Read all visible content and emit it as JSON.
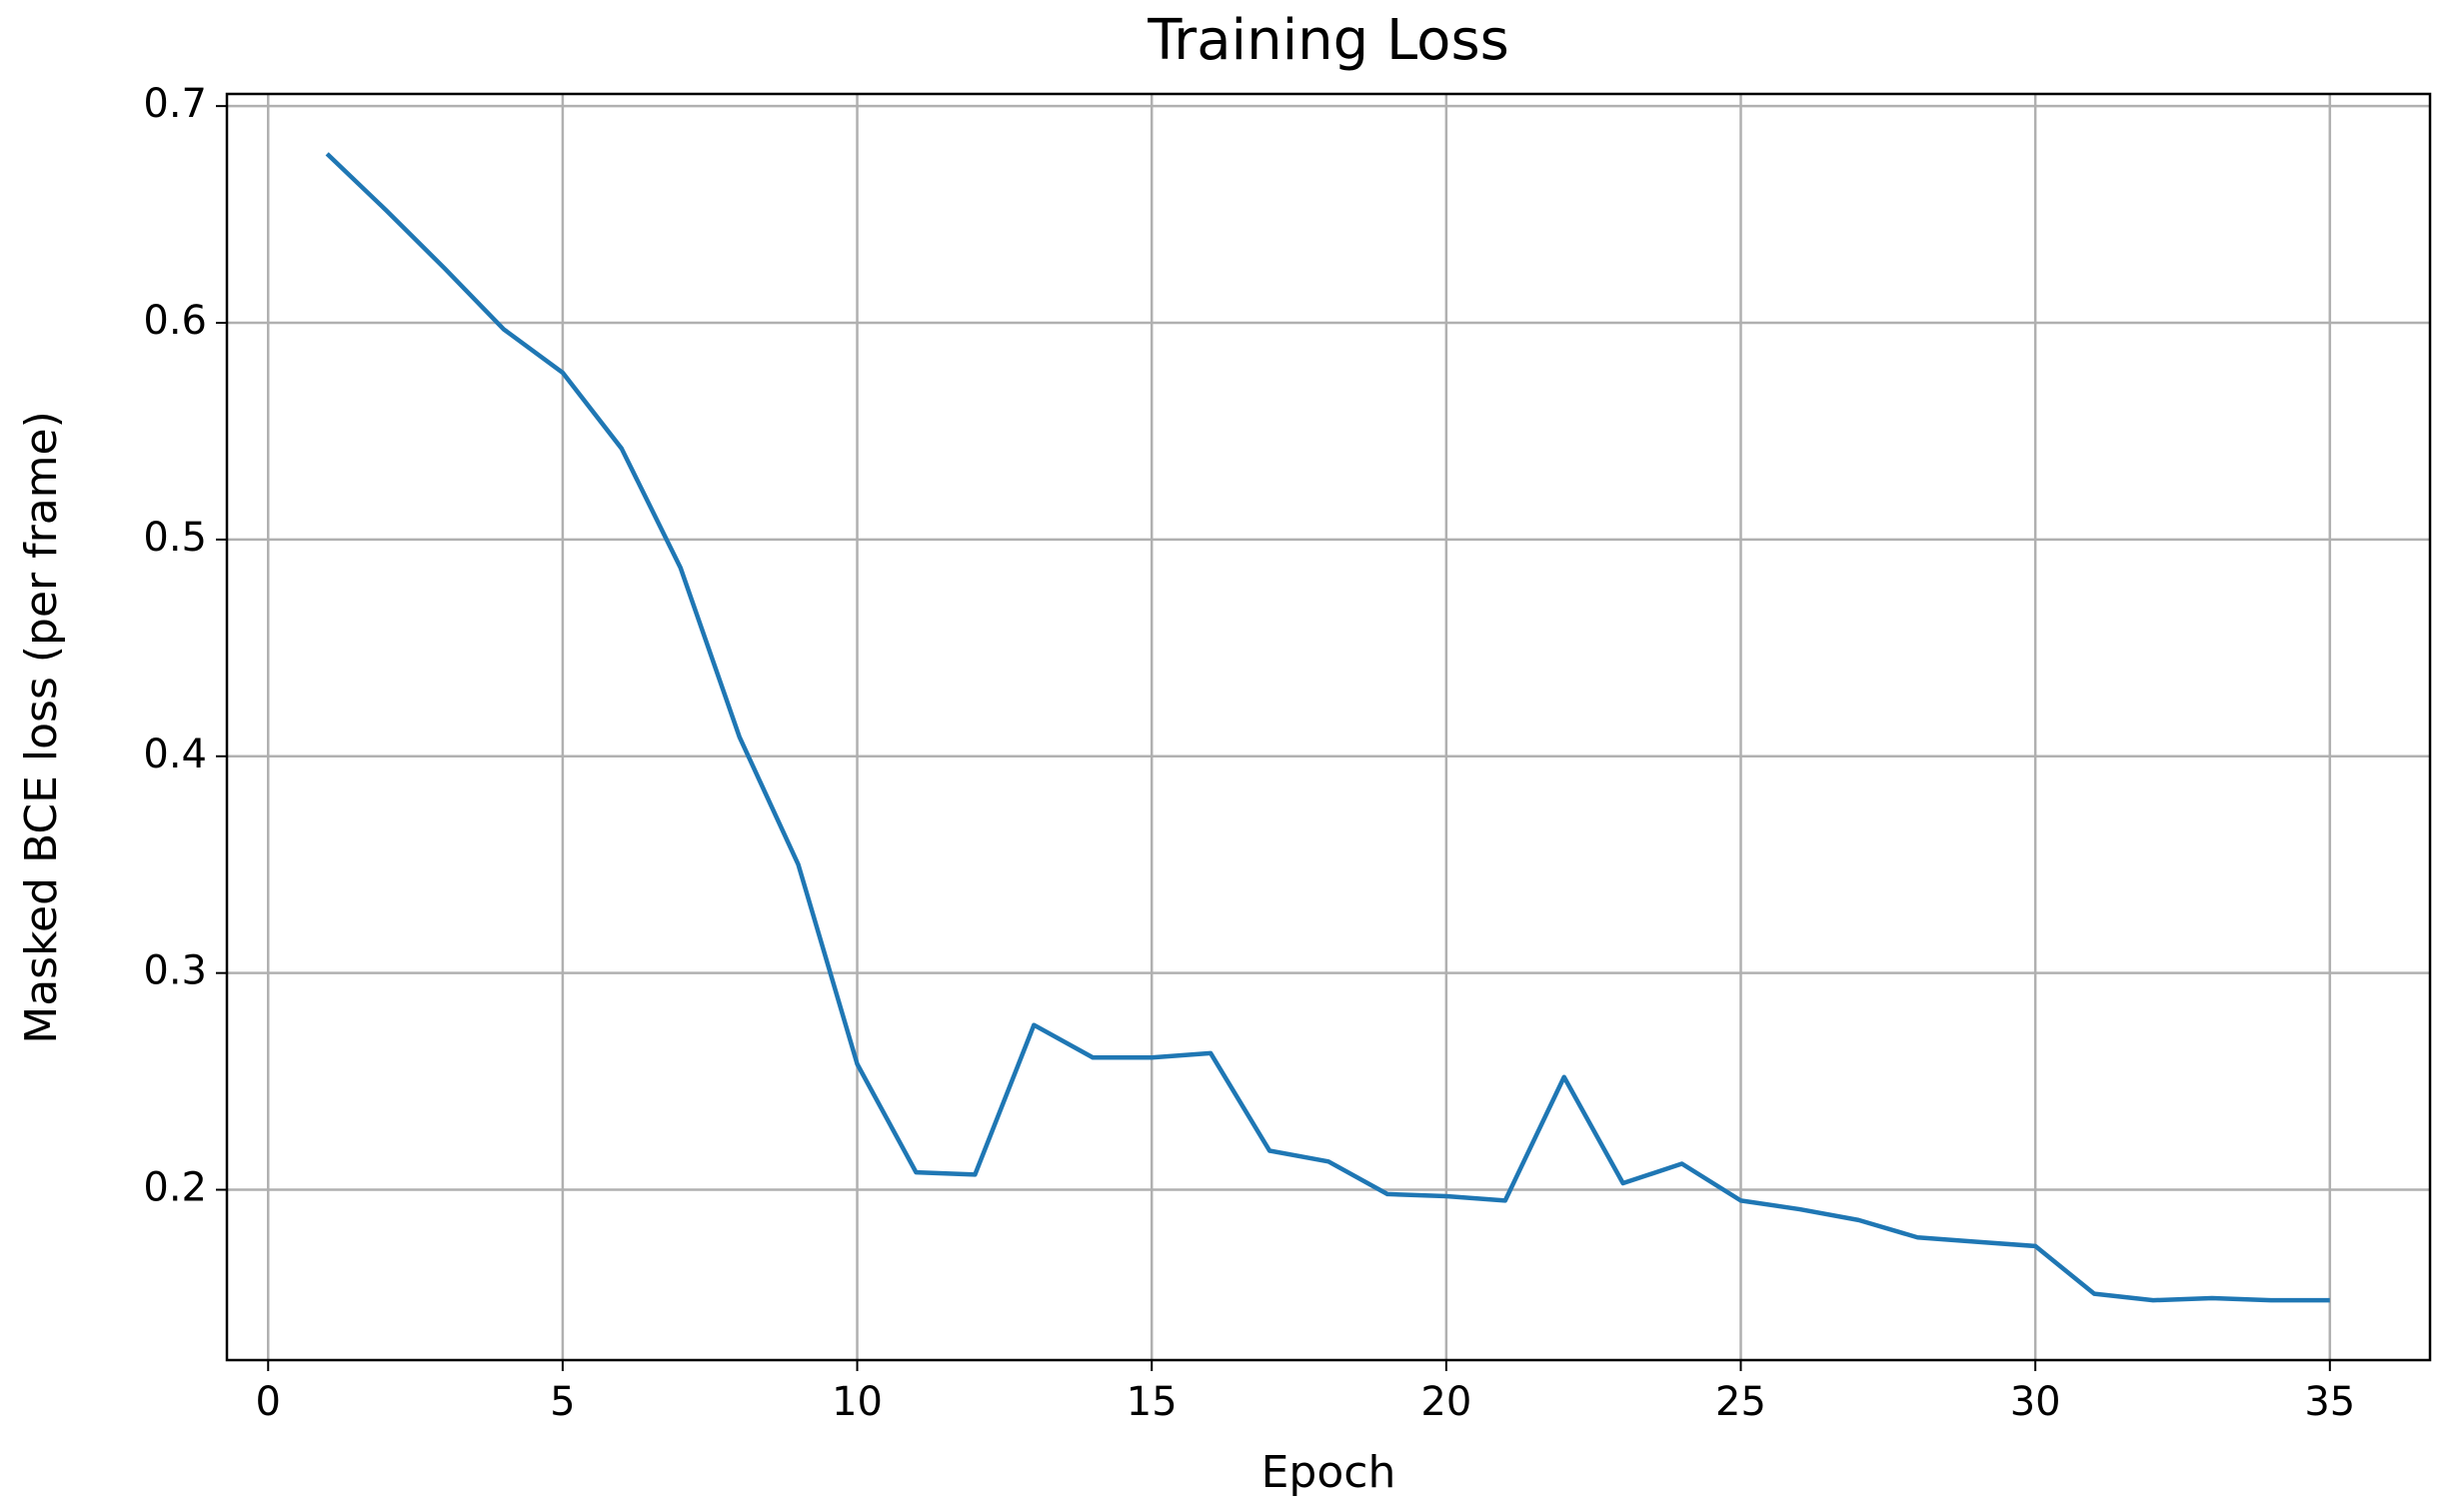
{
  "chart_data": {
    "type": "line",
    "title": "Training Loss",
    "x_label": "Epoch",
    "y_label": "Masked BCE loss (per frame)",
    "x": [
      1,
      2,
      3,
      4,
      5,
      6,
      7,
      8,
      9,
      10,
      11,
      12,
      13,
      14,
      15,
      16,
      17,
      18,
      19,
      20,
      21,
      22,
      23,
      24,
      25,
      26,
      27,
      28,
      29,
      30,
      31,
      32,
      33,
      34,
      35
    ],
    "series": [
      {
        "name": "Training Loss",
        "color": "#1f77b4",
        "values": [
          0.678,
          0.652,
          0.625,
          0.597,
          0.577,
          0.542,
          0.487,
          0.409,
          0.35,
          0.258,
          0.208,
          0.207,
          0.276,
          0.261,
          0.261,
          0.263,
          0.218,
          0.213,
          0.198,
          0.197,
          0.195,
          0.252,
          0.203,
          0.212,
          0.195,
          0.191,
          0.186,
          0.178,
          0.176,
          0.174,
          0.152,
          0.149,
          0.15,
          0.149,
          0.149
        ]
      }
    ],
    "xlim": [
      -0.7,
      36.7
    ],
    "ylim": [
      0.1214,
      0.7056
    ],
    "xticks": [
      0,
      5,
      10,
      15,
      20,
      25,
      30,
      35
    ],
    "yticks": [
      0.2,
      0.3,
      0.4,
      0.5,
      0.6,
      0.7
    ],
    "grid": true
  }
}
